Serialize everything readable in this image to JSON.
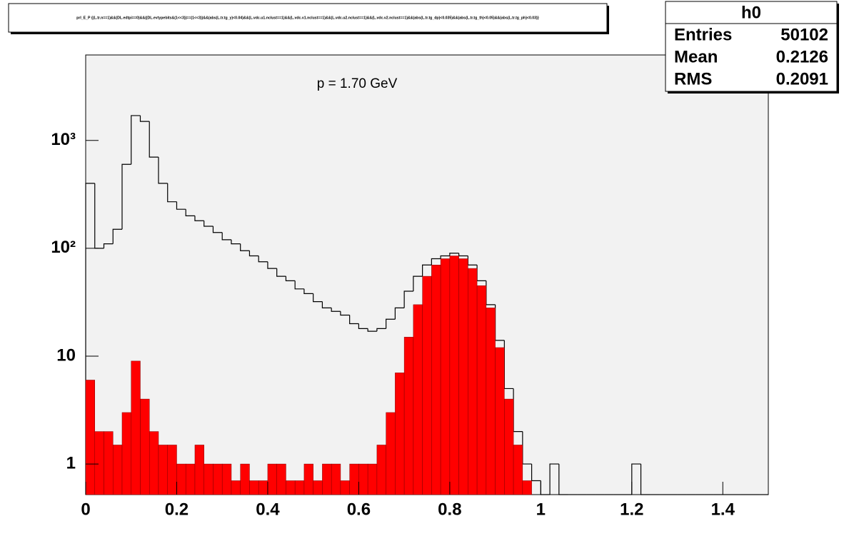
{
  "chart_data": {
    "type": "histogram",
    "title": "prl_E_P {(L.tr.n==1)&&(DL.edtpi==0)&&((DL.evtypebits&(1<<3))==(1<<3))&&(abs(L.tr.tg_y)<0.04)&&(L.vdc.u1.nclust==1)&&(L.vdc.v1.nclust==1)&&(L.vdc.u2.nclust==1)&&(L.vdc.v2.nclust==1)&&(abs(L.tr.tg_dp)<0.035)&&(abs(L.tr.tg_th)<0.05)&&(abs(L.tr.tg_ph)<0.03)}",
    "annotation": "p = 1.70 GeV",
    "stats": {
      "name": "h0",
      "rows": [
        [
          "Entries",
          "50102"
        ],
        [
          "Mean",
          "0.2126"
        ],
        [
          "RMS",
          "0.2091"
        ]
      ]
    },
    "log_y": true,
    "bins": [
      0,
      0.02,
      0.04,
      0.06,
      0.08,
      0.1,
      0.12,
      0.14,
      0.16,
      0.18,
      0.2,
      0.22,
      0.24,
      0.26,
      0.28,
      0.3,
      0.32,
      0.34,
      0.36,
      0.38,
      0.4,
      0.42,
      0.44,
      0.46,
      0.48,
      0.5,
      0.52,
      0.54,
      0.56,
      0.58,
      0.6,
      0.62,
      0.64,
      0.66,
      0.68,
      0.7,
      0.72,
      0.74,
      0.76,
      0.78,
      0.8,
      0.82,
      0.84,
      0.86,
      0.88,
      0.9,
      0.92,
      0.94,
      0.96,
      0.98,
      1,
      1.02,
      1.04,
      1.06,
      1.08,
      1.1,
      1.12,
      1.14,
      1.16,
      1.18,
      1.2,
      1.22,
      1.24,
      1.26,
      1.28,
      1.3,
      1.32,
      1.34,
      1.36,
      1.38,
      1.4,
      1.42,
      1.44,
      1.46,
      1.48,
      1.5
    ],
    "series": [
      {
        "style": "outline",
        "color": "#000000",
        "values": [
          400,
          100,
          110,
          150,
          600,
          1700,
          1500,
          700,
          400,
          270,
          230,
          200,
          180,
          160,
          140,
          120,
          110,
          95,
          85,
          75,
          65,
          55,
          50,
          42,
          38,
          32,
          28,
          26,
          24,
          20,
          18,
          17,
          18,
          22,
          28,
          40,
          55,
          70,
          80,
          85,
          90,
          85,
          70,
          50,
          30,
          14,
          5,
          2,
          1,
          0.7,
          0,
          1,
          0,
          0,
          0,
          0,
          0,
          0,
          0,
          0,
          1,
          0,
          0,
          0,
          0,
          0,
          0,
          0,
          0,
          0,
          0,
          0,
          0,
          0,
          0
        ]
      },
      {
        "style": "filled",
        "color": "#ff0000",
        "values": [
          6,
          2,
          2,
          1.5,
          3,
          9,
          4,
          2,
          1.5,
          1.5,
          1,
          1,
          1.5,
          1,
          1,
          1,
          0.7,
          1,
          0.7,
          0.7,
          1,
          1,
          0.7,
          0.7,
          1,
          0.7,
          1,
          1,
          0.7,
          1,
          1,
          1,
          1.5,
          3,
          7,
          15,
          30,
          55,
          70,
          80,
          85,
          80,
          65,
          45,
          28,
          12,
          4,
          1.5,
          0.7,
          0,
          0,
          0,
          0,
          0,
          0,
          0,
          0,
          0,
          0,
          0,
          0,
          0,
          0,
          0,
          0,
          0,
          0,
          0,
          0,
          0,
          0,
          0,
          0,
          0,
          0
        ]
      }
    ],
    "xlim": [
      0,
      1.5
    ],
    "xticks": [
      0,
      {
        "value": 0.2,
        "label": "0.2"
      },
      {
        "value": 0.4,
        "label": "0.4"
      },
      {
        "value": 0.6,
        "label": "0.6"
      },
      {
        "value": 0.8,
        "label": "0.8"
      },
      1,
      {
        "value": 1.2,
        "label": "1.2"
      },
      {
        "value": 1.4,
        "label": "1.4"
      }
    ],
    "ylim": [
      0.52,
      6200
    ],
    "yticks": [
      1,
      10,
      {
        "value": 100,
        "label": "10²"
      },
      {
        "value": 1000,
        "label": "10³"
      }
    ]
  }
}
